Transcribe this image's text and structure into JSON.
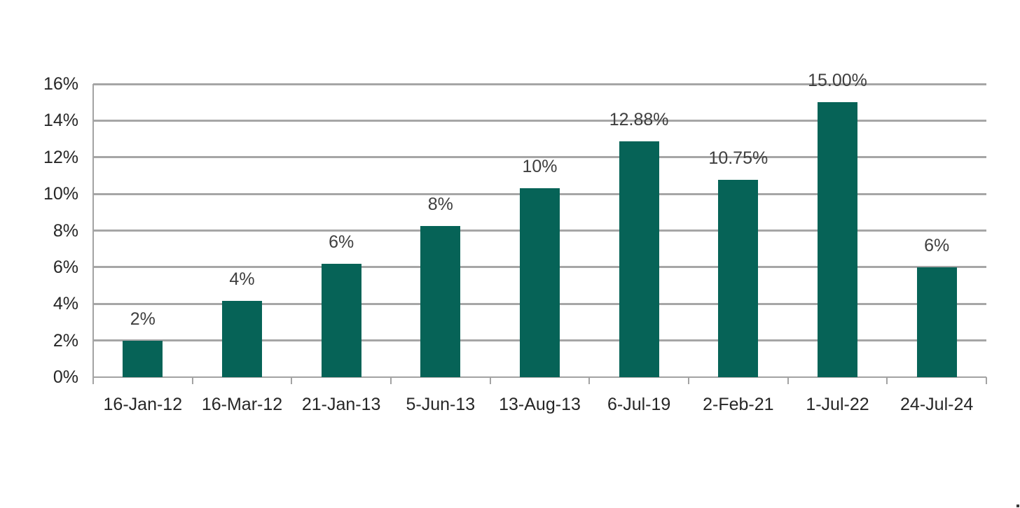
{
  "chart_data": {
    "type": "bar",
    "title": "",
    "xlabel": "",
    "ylabel": "",
    "categories": [
      "16-Jan-12",
      "16-Mar-12",
      "21-Jan-13",
      "5-Jun-13",
      "13-Aug-13",
      "6-Jul-19",
      "2-Feb-21",
      "1-Jul-22",
      "24-Jul-24"
    ],
    "values": [
      2.0,
      4.15,
      6.2,
      8.25,
      10.3,
      12.88,
      10.75,
      15.0,
      6.0
    ],
    "bar_labels": [
      "2%",
      "4%",
      "6%",
      "8%",
      "10%",
      "12.88%",
      "10.75%",
      "15.00%",
      "6%"
    ],
    "ylim": [
      0,
      16
    ],
    "ytick_step": 2,
    "ytick_labels": [
      "0%",
      "2%",
      "4%",
      "6%",
      "8%",
      "10%",
      "12%",
      "14%",
      "16%"
    ],
    "grid": "horizontal",
    "legend": "none"
  },
  "colors": {
    "bar_fill": "#066357",
    "gridline": "#a6a6a6",
    "axis_line": "#a3a3a3",
    "axis_label_text": "#262626",
    "bar_label_text": "#3f3f3f",
    "background": "#ffffff"
  }
}
